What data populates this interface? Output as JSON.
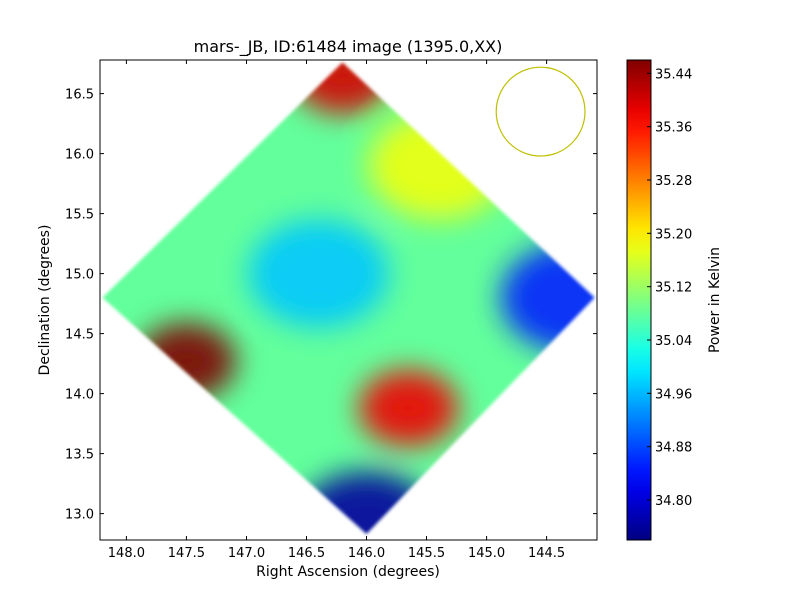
{
  "chart_data": {
    "type": "heatmap",
    "title": "mars-_JB, ID:61484 image (1395.0,XX)",
    "xlabel": "Right Ascension (degrees)",
    "ylabel": "Declination (degrees)",
    "xlim": [
      148.22,
      144.08
    ],
    "ylim": [
      12.78,
      16.78
    ],
    "x_ticks": [
      148.0,
      147.5,
      147.0,
      146.5,
      146.0,
      145.5,
      145.0,
      144.5
    ],
    "x_tick_labels": [
      "148.0",
      "147.5",
      "147.0",
      "146.5",
      "146.0",
      "145.5",
      "145.0",
      "144.5"
    ],
    "y_ticks": [
      13.0,
      13.5,
      14.0,
      14.5,
      15.0,
      15.5,
      16.0,
      16.5
    ],
    "y_tick_labels": [
      "13.0",
      "13.5",
      "14.0",
      "14.5",
      "15.0",
      "15.5",
      "16.0",
      "16.5"
    ],
    "colormap": "jet",
    "colorbar": {
      "label": "Power in Kelvin",
      "vmin": 34.74,
      "vmax": 35.46,
      "ticks": [
        34.8,
        34.88,
        34.96,
        35.04,
        35.12,
        35.2,
        35.28,
        35.36,
        35.44
      ],
      "tick_labels": [
        "34.80",
        "34.88",
        "34.96",
        "35.04",
        "35.12",
        "35.20",
        "35.28",
        "35.36",
        "35.44"
      ]
    },
    "map_footprint": {
      "shape": "diamond",
      "vertices_ra_dec": [
        [
          146.2,
          16.76
        ],
        [
          148.2,
          14.8
        ],
        [
          146.0,
          12.83
        ],
        [
          144.1,
          14.8
        ]
      ]
    },
    "beam_circle": {
      "ra": 144.55,
      "dec": 16.35,
      "radius_deg": 0.37,
      "color": "#bfbf00"
    },
    "features": [
      {
        "ra": 147.5,
        "dec": 14.27,
        "value": 35.46,
        "label": "hot spot (west)"
      },
      {
        "ra": 146.2,
        "dec": 16.65,
        "value": 35.4,
        "label": "warm region (north)"
      },
      {
        "ra": 145.65,
        "dec": 13.88,
        "value": 35.38,
        "label": "hot spot (south-east)"
      },
      {
        "ra": 144.3,
        "dec": 14.8,
        "value": 34.85,
        "label": "cool region (east)"
      },
      {
        "ra": 146.0,
        "dec": 12.9,
        "value": 34.76,
        "label": "cool region (south)"
      },
      {
        "ra": 145.4,
        "dec": 15.9,
        "value": 35.18,
        "label": "plateau (north-east)"
      },
      {
        "ra": 146.4,
        "dec": 15.0,
        "value": 34.97,
        "label": "cool channel (center)"
      }
    ]
  }
}
